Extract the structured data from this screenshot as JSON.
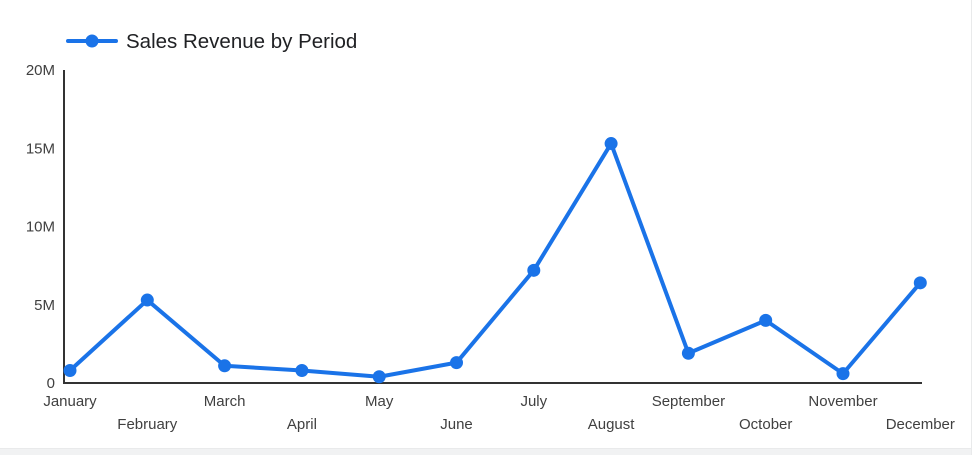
{
  "chart_data": {
    "type": "line",
    "title": "Sales Revenue by Period",
    "categories": [
      "January",
      "February",
      "March",
      "April",
      "May",
      "June",
      "July",
      "August",
      "September",
      "October",
      "November",
      "December"
    ],
    "series": [
      {
        "name": "Sales Revenue by Period",
        "values": [
          0.8,
          5.3,
          1.1,
          0.8,
          0.4,
          1.3,
          7.2,
          15.3,
          1.9,
          4.0,
          0.6,
          6.4
        ]
      }
    ],
    "value_unit": "M",
    "xlabel": "",
    "ylabel": "",
    "ylim": [
      0,
      20
    ],
    "yticks": {
      "values": [
        0,
        5,
        10,
        15,
        20
      ],
      "labels": [
        "0",
        "5M",
        "10M",
        "15M",
        "20M"
      ]
    },
    "grid": "off",
    "legend_position": "top-left",
    "x_label_layout": "staggered-two-rows",
    "colors": {
      "series_line": "#1a73e8",
      "point_fill": "#1a73e8",
      "axis_line": "#333333",
      "tick_text": "#404040",
      "title_text": "#202124",
      "background": "#ffffff",
      "bottom_strip": "#f1f2f3"
    }
  }
}
